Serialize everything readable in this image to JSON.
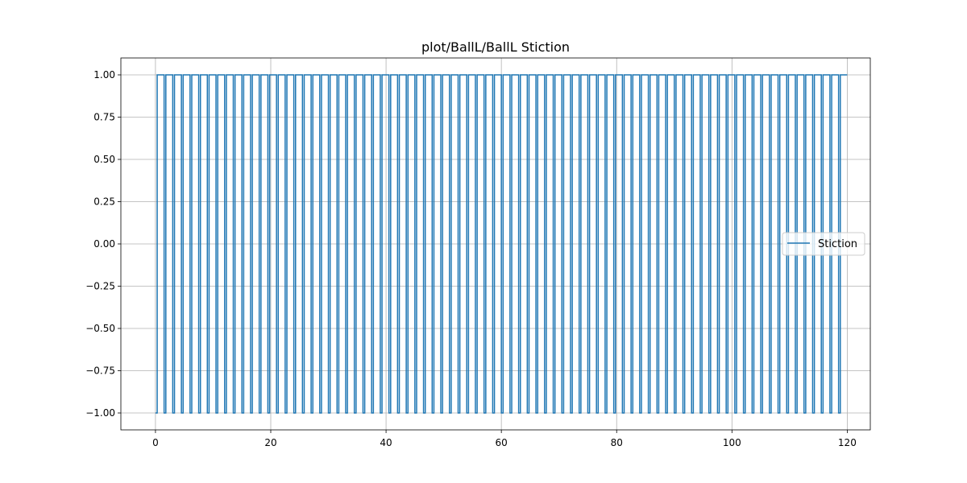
{
  "chart_data": {
    "type": "line",
    "title": "plot/BallL/BallL Stiction",
    "xlabel": "",
    "ylabel": "",
    "xlim": [
      -6,
      124
    ],
    "ylim": [
      -1.1,
      1.1
    ],
    "x_ticks": [
      0,
      20,
      40,
      60,
      80,
      100,
      120
    ],
    "x_tick_labels": [
      "0",
      "20",
      "40",
      "60",
      "80",
      "100",
      "120"
    ],
    "y_ticks": [
      -1.0,
      -0.75,
      -0.5,
      -0.25,
      0.0,
      0.25,
      0.5,
      0.75,
      1.0
    ],
    "y_tick_labels": [
      "−1.00",
      "−0.75",
      "−0.50",
      "−0.25",
      "0.00",
      "0.25",
      "0.50",
      "0.75",
      "1.00"
    ],
    "grid": true,
    "legend_position": "center-right",
    "series": [
      {
        "name": "Stiction",
        "color": "#1f77b4",
        "step": "post",
        "x": [
          0,
          0.3,
          1.5,
          1.8,
          3.0,
          3.3,
          4.5,
          4.8,
          6.0,
          6.3,
          7.5,
          7.8,
          9.0,
          9.3,
          10.5,
          10.8,
          12.0,
          12.3,
          13.5,
          13.8,
          15.0,
          15.3,
          16.5,
          16.8,
          18.0,
          18.3,
          19.5,
          19.8,
          21.0,
          21.3,
          22.5,
          22.8,
          24.0,
          24.3,
          25.5,
          25.8,
          27.0,
          27.3,
          28.5,
          28.8,
          30.0,
          30.3,
          31.5,
          31.8,
          33.0,
          33.3,
          34.5,
          34.8,
          36.0,
          36.3,
          37.5,
          37.8,
          39.0,
          39.3,
          40.5,
          40.8,
          42.0,
          42.3,
          43.5,
          43.8,
          45.0,
          45.3,
          46.5,
          46.8,
          48.0,
          48.3,
          49.5,
          49.8,
          51.0,
          51.3,
          52.5,
          52.8,
          54.0,
          54.3,
          55.5,
          55.8,
          57.0,
          57.3,
          58.5,
          58.8,
          60.0,
          60.3,
          61.5,
          61.8,
          63.0,
          63.3,
          64.5,
          64.8,
          66.0,
          66.3,
          67.5,
          67.8,
          69.0,
          69.3,
          70.5,
          70.8,
          72.0,
          72.3,
          73.5,
          73.8,
          75.0,
          75.3,
          76.5,
          76.8,
          78.0,
          78.3,
          79.5,
          79.8,
          81.0,
          81.3,
          82.5,
          82.8,
          84.0,
          84.3,
          85.5,
          85.8,
          87.0,
          87.3,
          88.5,
          88.8,
          90.0,
          90.3,
          91.5,
          91.8,
          93.0,
          93.3,
          94.5,
          94.8,
          96.0,
          96.3,
          97.5,
          97.8,
          99.0,
          99.3,
          100.5,
          100.8,
          102.0,
          102.3,
          103.5,
          103.8,
          105.0,
          105.3,
          106.5,
          106.8,
          108.0,
          108.3,
          109.5,
          109.8,
          111.0,
          111.3,
          112.5,
          112.8,
          114.0,
          114.3,
          115.5,
          115.8,
          117.0,
          117.3,
          118.5,
          118.8,
          120.0
        ],
        "y": [
          -1,
          1,
          -1,
          1,
          -1,
          1,
          -1,
          1,
          -1,
          1,
          -1,
          1,
          -1,
          1,
          -1,
          1,
          -1,
          1,
          -1,
          1,
          -1,
          1,
          -1,
          1,
          -1,
          1,
          -1,
          1,
          -1,
          1,
          -1,
          1,
          -1,
          1,
          -1,
          1,
          -1,
          1,
          -1,
          1,
          -1,
          1,
          -1,
          1,
          -1,
          1,
          -1,
          1,
          -1,
          1,
          -1,
          1,
          -1,
          1,
          -1,
          1,
          -1,
          1,
          -1,
          1,
          -1,
          1,
          -1,
          1,
          -1,
          1,
          -1,
          1,
          -1,
          1,
          -1,
          1,
          -1,
          1,
          -1,
          1,
          -1,
          1,
          -1,
          1,
          -1,
          1,
          -1,
          1,
          -1,
          1,
          -1,
          1,
          -1,
          1,
          -1,
          1,
          -1,
          1,
          -1,
          1,
          -1,
          1,
          -1,
          1,
          -1,
          1,
          -1,
          1,
          -1,
          1,
          -1,
          1,
          -1,
          1,
          -1,
          1,
          -1,
          1,
          -1,
          1,
          -1,
          1,
          -1,
          1,
          -1,
          1,
          -1,
          1,
          -1,
          1,
          -1,
          1,
          -1,
          1,
          -1,
          1,
          -1,
          1,
          -1,
          1,
          -1,
          1,
          -1,
          1,
          -1,
          1,
          -1,
          1,
          -1,
          1,
          -1,
          1,
          -1,
          1,
          -1,
          1,
          -1,
          1,
          -1,
          1,
          -1,
          1,
          -1,
          1,
          1
        ]
      }
    ]
  }
}
